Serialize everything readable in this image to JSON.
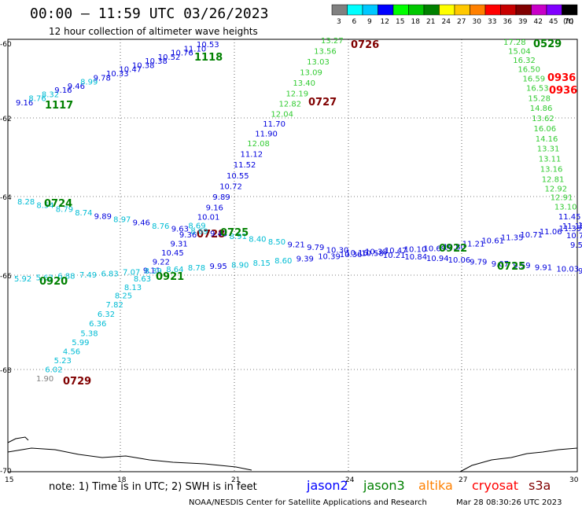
{
  "title": "00:00 – 11:59 UTC 03/26/2023",
  "subtitle": "12 hour collection of altimeter wave heights",
  "colorbar": {
    "ticks": [
      "3",
      "6",
      "9",
      "12",
      "15",
      "18",
      "21",
      "24",
      "27",
      "30",
      "33",
      "36",
      "39",
      "42",
      "45",
      "70"
    ],
    "unit": "(ft)",
    "colors": [
      "#808080",
      "#00ffff",
      "#00c8ff",
      "#0000ff",
      "#00ff00",
      "#00c800",
      "#008000",
      "#ffff00",
      "#ffc800",
      "#ff8000",
      "#ff0000",
      "#c80000",
      "#800000",
      "#c800c8",
      "#8000ff",
      "#000000"
    ]
  },
  "axes": {
    "lat_labels": [
      "-60",
      "-62",
      "-64",
      "-66",
      "-68",
      "-70"
    ],
    "lon_labels": [
      "15",
      "18",
      "21",
      "24",
      "27",
      "30"
    ]
  },
  "tracks": [
    {
      "points": [
        {
          "v": "9.16",
          "c": "#0000dd"
        },
        {
          "v": "8.76",
          "c": "#00bcd4"
        },
        {
          "v": "8.32",
          "c": "#00bcd4"
        },
        {
          "v": "9.16",
          "c": "#0000dd"
        },
        {
          "v": "9.46",
          "c": "#0000dd"
        },
        {
          "v": "8.99",
          "c": "#00bcd4"
        },
        {
          "v": "9.78",
          "c": "#0000dd"
        },
        {
          "v": "10.33",
          "c": "#0000dd"
        },
        {
          "v": "10.47",
          "c": "#0000dd"
        },
        {
          "v": "10.38",
          "c": "#0000dd"
        },
        {
          "v": "10.38",
          "c": "#0000dd"
        },
        {
          "v": "10.52",
          "c": "#0000dd"
        },
        {
          "v": "10.76",
          "c": "#0000dd"
        },
        {
          "v": "11.10",
          "c": "#0000dd"
        },
        {
          "v": "10.53",
          "c": "#0000dd"
        }
      ],
      "time": {
        "label": "1118",
        "color": "#008000"
      },
      "time2": {
        "label": "1117",
        "color": "#008000"
      }
    },
    {
      "points": [
        {
          "v": "13.27",
          "c": "#33cc33"
        },
        {
          "v": "13.56",
          "c": "#33cc33"
        },
        {
          "v": "13.03",
          "c": "#33cc33"
        },
        {
          "v": "13.09",
          "c": "#33cc33"
        },
        {
          "v": "13.40",
          "c": "#33cc33"
        },
        {
          "v": "12.19",
          "c": "#33cc33"
        },
        {
          "v": "12.82",
          "c": "#33cc33"
        },
        {
          "v": "12.04",
          "c": "#33cc33"
        },
        {
          "v": "11.70",
          "c": "#0000dd"
        },
        {
          "v": "11.90",
          "c": "#0000dd"
        },
        {
          "v": "12.08",
          "c": "#33cc33"
        },
        {
          "v": "11.12",
          "c": "#0000dd"
        },
        {
          "v": "11.52",
          "c": "#0000dd"
        },
        {
          "v": "10.55",
          "c": "#0000dd"
        },
        {
          "v": "10.72",
          "c": "#0000dd"
        },
        {
          "v": "9.89",
          "c": "#0000dd"
        },
        {
          "v": "9.16",
          "c": "#0000dd"
        },
        {
          "v": "10.01",
          "c": "#0000dd"
        },
        {
          "v": "8.69",
          "c": "#00bcd4"
        },
        {
          "v": "9.36",
          "c": "#0000dd"
        },
        {
          "v": "9.31",
          "c": "#0000dd"
        },
        {
          "v": "10.45",
          "c": "#0000dd"
        },
        {
          "v": "9.22",
          "c": "#0000dd"
        },
        {
          "v": "9.11",
          "c": "#0000dd"
        },
        {
          "v": "8.63",
          "c": "#00bcd4"
        },
        {
          "v": "8.13",
          "c": "#00bcd4"
        },
        {
          "v": "8.25",
          "c": "#00bcd4"
        },
        {
          "v": "7.82",
          "c": "#00bcd4"
        },
        {
          "v": "6.32",
          "c": "#00bcd4"
        },
        {
          "v": "6.36",
          "c": "#00bcd4"
        },
        {
          "v": "5.38",
          "c": "#00bcd4"
        },
        {
          "v": "5.99",
          "c": "#00bcd4"
        },
        {
          "v": "4.56",
          "c": "#00bcd4"
        },
        {
          "v": "5.23",
          "c": "#00bcd4"
        },
        {
          "v": "6.02",
          "c": "#00bcd4"
        },
        {
          "v": "1.90",
          "c": "#808080"
        }
      ],
      "time_top": {
        "label": "0726",
        "color": "#800000"
      },
      "time_mid": {
        "label": "0727",
        "color": "#800000"
      },
      "time_mid2": {
        "label": "0728",
        "color": "#800000"
      },
      "time_bot": {
        "label": "0729",
        "color": "#800000"
      }
    },
    {
      "points": [
        {
          "v": "8.28",
          "c": "#00bcd4"
        },
        {
          "v": "8.54",
          "c": "#00bcd4"
        },
        {
          "v": "8.79",
          "c": "#00bcd4"
        },
        {
          "v": "8.74",
          "c": "#00bcd4"
        },
        {
          "v": "9.89",
          "c": "#0000dd"
        },
        {
          "v": "8.97",
          "c": "#00bcd4"
        },
        {
          "v": "9.46",
          "c": "#0000dd"
        },
        {
          "v": "8.76",
          "c": "#00bcd4"
        },
        {
          "v": "9.63",
          "c": "#0000dd"
        },
        {
          "v": "8.69",
          "c": "#00bcd4"
        },
        {
          "v": "9.43",
          "c": "#0000dd"
        },
        {
          "v": "8.91",
          "c": "#00bcd4"
        },
        {
          "v": "8.40",
          "c": "#00bcd4"
        },
        {
          "v": "8.50",
          "c": "#00bcd4"
        },
        {
          "v": "9.21",
          "c": "#0000dd"
        },
        {
          "v": "9.79",
          "c": "#0000dd"
        },
        {
          "v": "10.30",
          "c": "#0000dd"
        },
        {
          "v": "10.16",
          "c": "#0000dd"
        },
        {
          "v": "10.38",
          "c": "#0000dd"
        },
        {
          "v": "10.47",
          "c": "#0000dd"
        },
        {
          "v": "10.10",
          "c": "#0000dd"
        },
        {
          "v": "10.69",
          "c": "#0000dd"
        },
        {
          "v": "10.80",
          "c": "#0000dd"
        },
        {
          "v": "11.21",
          "c": "#0000dd"
        },
        {
          "v": "10.61",
          "c": "#0000dd"
        },
        {
          "v": "11.35",
          "c": "#0000dd"
        },
        {
          "v": "10.71",
          "c": "#0000dd"
        },
        {
          "v": "11.06",
          "c": "#0000dd"
        },
        {
          "v": "11.35",
          "c": "#0000dd"
        },
        {
          "v": "11.06",
          "c": "#0000dd"
        }
      ],
      "time": {
        "label": "0724",
        "color": "#008000"
      },
      "time2": {
        "label": "0725",
        "color": "#008000"
      },
      "time3": {
        "label": "0922",
        "color": "#008000"
      }
    },
    {
      "points": [
        {
          "v": "5.92",
          "c": "#00bcd4"
        },
        {
          "v": "5.63",
          "c": "#00bcd4"
        },
        {
          "v": "6.88",
          "c": "#00bcd4"
        },
        {
          "v": "7.49",
          "c": "#00bcd4"
        },
        {
          "v": "6.83",
          "c": "#00bcd4"
        },
        {
          "v": "7.07",
          "c": "#00bcd4"
        },
        {
          "v": "8.39",
          "c": "#00bcd4"
        },
        {
          "v": "8.64",
          "c": "#00bcd4"
        },
        {
          "v": "8.78",
          "c": "#00bcd4"
        },
        {
          "v": "9.95",
          "c": "#0000dd"
        },
        {
          "v": "8.90",
          "c": "#00bcd4"
        },
        {
          "v": "8.15",
          "c": "#00bcd4"
        },
        {
          "v": "8.60",
          "c": "#00bcd4"
        },
        {
          "v": "9.39",
          "c": "#0000dd"
        },
        {
          "v": "10.39",
          "c": "#0000dd"
        },
        {
          "v": "10.36",
          "c": "#0000dd"
        },
        {
          "v": "10.58",
          "c": "#0000dd"
        },
        {
          "v": "10.21",
          "c": "#0000dd"
        },
        {
          "v": "10.84",
          "c": "#0000dd"
        },
        {
          "v": "10.94",
          "c": "#0000dd"
        },
        {
          "v": "10.06",
          "c": "#0000dd"
        },
        {
          "v": "9.79",
          "c": "#0000dd"
        },
        {
          "v": "9.07",
          "c": "#0000dd"
        },
        {
          "v": "9.59",
          "c": "#0000dd"
        },
        {
          "v": "9.91",
          "c": "#0000dd"
        },
        {
          "v": "10.03",
          "c": "#0000dd"
        },
        {
          "v": "9.88",
          "c": "#0000dd"
        }
      ],
      "time": {
        "label": "0920",
        "color": "#008000"
      },
      "time2": {
        "label": "0921",
        "color": "#008000"
      },
      "time3": {
        "label": "0725",
        "color": "#008000"
      }
    },
    {
      "points": [
        {
          "v": "17.28",
          "c": "#33cc33"
        },
        {
          "v": "15.04",
          "c": "#33cc33"
        },
        {
          "v": "16.32",
          "c": "#33cc33"
        },
        {
          "v": "16.50",
          "c": "#33cc33"
        },
        {
          "v": "16.59",
          "c": "#33cc33"
        },
        {
          "v": "16.53",
          "c": "#33cc33"
        },
        {
          "v": "15.28",
          "c": "#33cc33"
        },
        {
          "v": "14.86",
          "c": "#33cc33"
        },
        {
          "v": "13.62",
          "c": "#33cc33"
        },
        {
          "v": "16.06",
          "c": "#33cc33"
        },
        {
          "v": "14.16",
          "c": "#33cc33"
        },
        {
          "v": "13.31",
          "c": "#33cc33"
        },
        {
          "v": "13.11",
          "c": "#33cc33"
        },
        {
          "v": "13.16",
          "c": "#33cc33"
        },
        {
          "v": "12.81",
          "c": "#33cc33"
        },
        {
          "v": "12.92",
          "c": "#33cc33"
        },
        {
          "v": "12.91",
          "c": "#33cc33"
        },
        {
          "v": "13.10",
          "c": "#33cc33"
        },
        {
          "v": "11.45",
          "c": "#0000dd"
        },
        {
          "v": "11.18",
          "c": "#0000dd"
        },
        {
          "v": "10.75",
          "c": "#0000dd"
        },
        {
          "v": "9.52",
          "c": "#0000dd"
        }
      ],
      "time": {
        "label": "0529",
        "color": "#008000"
      },
      "time2": {
        "label": "0936",
        "color": "#ff0000"
      },
      "time3": {
        "label": "0936",
        "color": "#ff0000"
      }
    }
  ],
  "notes": {
    "text": "note: 1) Time is in UTC; 2) SWH is in feet",
    "sats": [
      {
        "name": "jason2",
        "color": "#0000ff"
      },
      {
        "name": "jason3",
        "color": "#008000"
      },
      {
        "name": "altika",
        "color": "#ff8000"
      },
      {
        "name": "cryosat",
        "color": "#ff0000"
      },
      {
        "name": "s3a",
        "color": "#800000"
      }
    ]
  },
  "credit": "NOAA/NESDIS Center for Satellite Applications and Research",
  "timestamp": "Mar 28 08:30:26 UTC 2023"
}
